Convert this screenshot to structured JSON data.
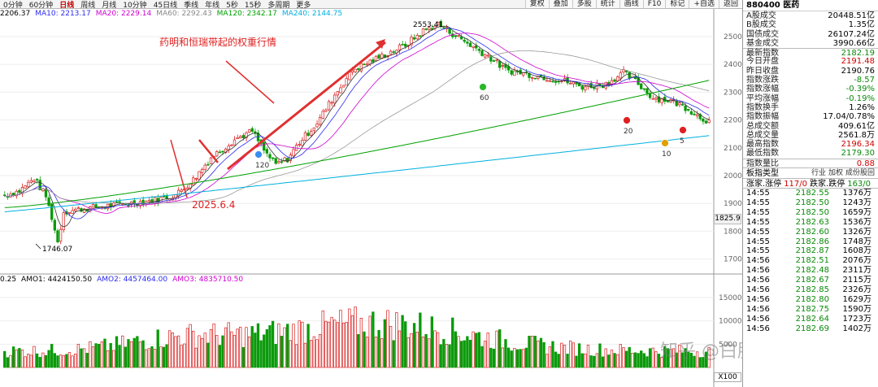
{
  "toolbar": {
    "timeframes": [
      "0分钟",
      "60分钟",
      "日线",
      "周线",
      "月线",
      "10分钟",
      "45日线",
      "季线",
      "年线",
      "5秒",
      "15秒",
      "多周期",
      "更多"
    ],
    "active_index": 2,
    "right_buttons": [
      "复权",
      "叠加",
      "多股",
      "统计",
      "画线",
      "F10",
      "标记",
      "+自选",
      "返回"
    ]
  },
  "ma_legend": [
    {
      "text": "2206.37",
      "color": "#000000"
    },
    {
      "text": "MA10: 2213.17",
      "color": "#2a2af0"
    },
    {
      "text": "MA20: 2229.14",
      "color": "#d000d0"
    },
    {
      "text": "MA60: 2292.43",
      "color": "#888888"
    },
    {
      "text": "MA120: 2342.17",
      "color": "#00a000"
    },
    {
      "text": "MA240: 2144.75",
      "color": "#00b0e0"
    }
  ],
  "amo_legend": [
    {
      "text": "0.25",
      "color": "#000000"
    },
    {
      "text": "AMO1: 4424150.50",
      "color": "#000000"
    },
    {
      "text": "AMO2: 4457464.00",
      "color": "#2a2af0"
    },
    {
      "text": "AMO3: 4835710.50",
      "color": "#d000d0"
    }
  ],
  "annotations": {
    "top_note": "药明和恒瑞带起的权重行情",
    "date_note": "2025.6.4",
    "high_label": "2553.41",
    "low_label": "1746.07",
    "markers": [
      "120",
      "60",
      "20",
      "10",
      "5"
    ]
  },
  "price_axis": [
    "2500",
    "2400",
    "2300",
    "2200",
    "2100",
    "2000",
    "1900",
    "1800",
    "1700"
  ],
  "price_tag": "1825.9",
  "volume_axis": [
    "15000",
    "10000",
    "5000"
  ],
  "volume_unit": "X100",
  "watermark": "知乎 @白胖胖",
  "side": {
    "title": "880400 医药",
    "info": [
      {
        "label": "A股成交",
        "value": "20448.51亿",
        "color": "#000000"
      },
      {
        "label": "B股成交",
        "value": "1.35亿",
        "color": "#000000"
      },
      {
        "label": "国债成交",
        "value": "26107.24亿",
        "color": "#000000"
      },
      {
        "label": "基金成交",
        "value": "3990.66亿",
        "color": "#000000"
      },
      {
        "label": "最新指数",
        "value": "2182.19",
        "color": "#0a8a0a"
      },
      {
        "label": "今日开盘",
        "value": "2191.48",
        "color": "#d00000"
      },
      {
        "label": "昨日收盘",
        "value": "2190.76",
        "color": "#000000"
      },
      {
        "label": "指数涨跌",
        "value": "-8.57",
        "color": "#0a8a0a"
      },
      {
        "label": "指数涨幅",
        "value": "-0.39%",
        "color": "#0a8a0a"
      },
      {
        "label": "平均涨幅",
        "value": "-0.19%",
        "color": "#0a8a0a"
      },
      {
        "label": "指数换手",
        "value": "1.26%",
        "color": "#000000"
      },
      {
        "label": "指数振幅",
        "value": "17.04/0.78%",
        "color": "#000000"
      },
      {
        "label": "总成交额",
        "value": "409.61亿",
        "color": "#000000"
      },
      {
        "label": "总成交量",
        "value": "2561.8万",
        "color": "#000000"
      },
      {
        "label": "最高指数",
        "value": "2196.34",
        "color": "#d00000"
      },
      {
        "label": "最低指数",
        "value": "2179.30",
        "color": "#0a8a0a"
      },
      {
        "label": "指数量比",
        "value": "0.88",
        "color": "#d00000"
      }
    ],
    "board_label": "板指类型",
    "board_tabs": [
      "行业",
      "加权",
      "成份股回"
    ],
    "rise_label": "涨家.涨停",
    "rise_value": "117/0",
    "fall_label": "跌家.跌停",
    "fall_value": "163/0",
    "ticks": [
      {
        "t": "14:55",
        "p": "2182.55",
        "v": "1376万"
      },
      {
        "t": "14:55",
        "p": "2182.50",
        "v": "1243万"
      },
      {
        "t": "14:55",
        "p": "2182.50",
        "v": "1659万"
      },
      {
        "t": "14:55",
        "p": "2182.63",
        "v": "1536万"
      },
      {
        "t": "14:55",
        "p": "2182.60",
        "v": "1326万"
      },
      {
        "t": "14:55",
        "p": "2182.86",
        "v": "1748万"
      },
      {
        "t": "14:55",
        "p": "2182.87",
        "v": "1608万"
      },
      {
        "t": "14:56",
        "p": "2182.51",
        "v": "2076万"
      },
      {
        "t": "14:56",
        "p": "2182.48",
        "v": "2311万"
      },
      {
        "t": "14:56",
        "p": "2182.67",
        "v": "2115万"
      },
      {
        "t": "14:56",
        "p": "2182.85",
        "v": "2326万"
      },
      {
        "t": "14:56",
        "p": "2182.80",
        "v": "1629万"
      },
      {
        "t": "14:56",
        "p": "2182.75",
        "v": "1590万"
      },
      {
        "t": "14:56",
        "p": "2182.64",
        "v": "1723万"
      },
      {
        "t": "14:56",
        "p": "2182.69",
        "v": "1402万"
      }
    ]
  }
}
